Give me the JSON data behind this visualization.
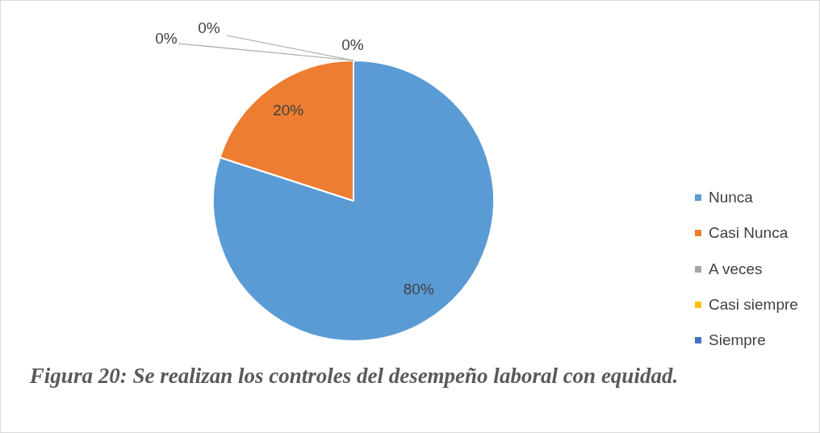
{
  "chart_data": {
    "type": "pie",
    "title": "Figura 20: Se realizan los controles del desempeño laboral con equidad.",
    "categories": [
      "Nunca",
      "Casi Nunca",
      "A veces",
      "Casi siempre",
      "Siempre"
    ],
    "values": [
      80,
      20,
      0,
      0,
      0
    ],
    "colors": [
      "#5b9bd5",
      "#ed7d31",
      "#a5a5a5",
      "#ffc000",
      "#4472c4"
    ],
    "value_labels": [
      "80%",
      "20%",
      "0%",
      "0%",
      "0%"
    ],
    "legend": "right"
  }
}
